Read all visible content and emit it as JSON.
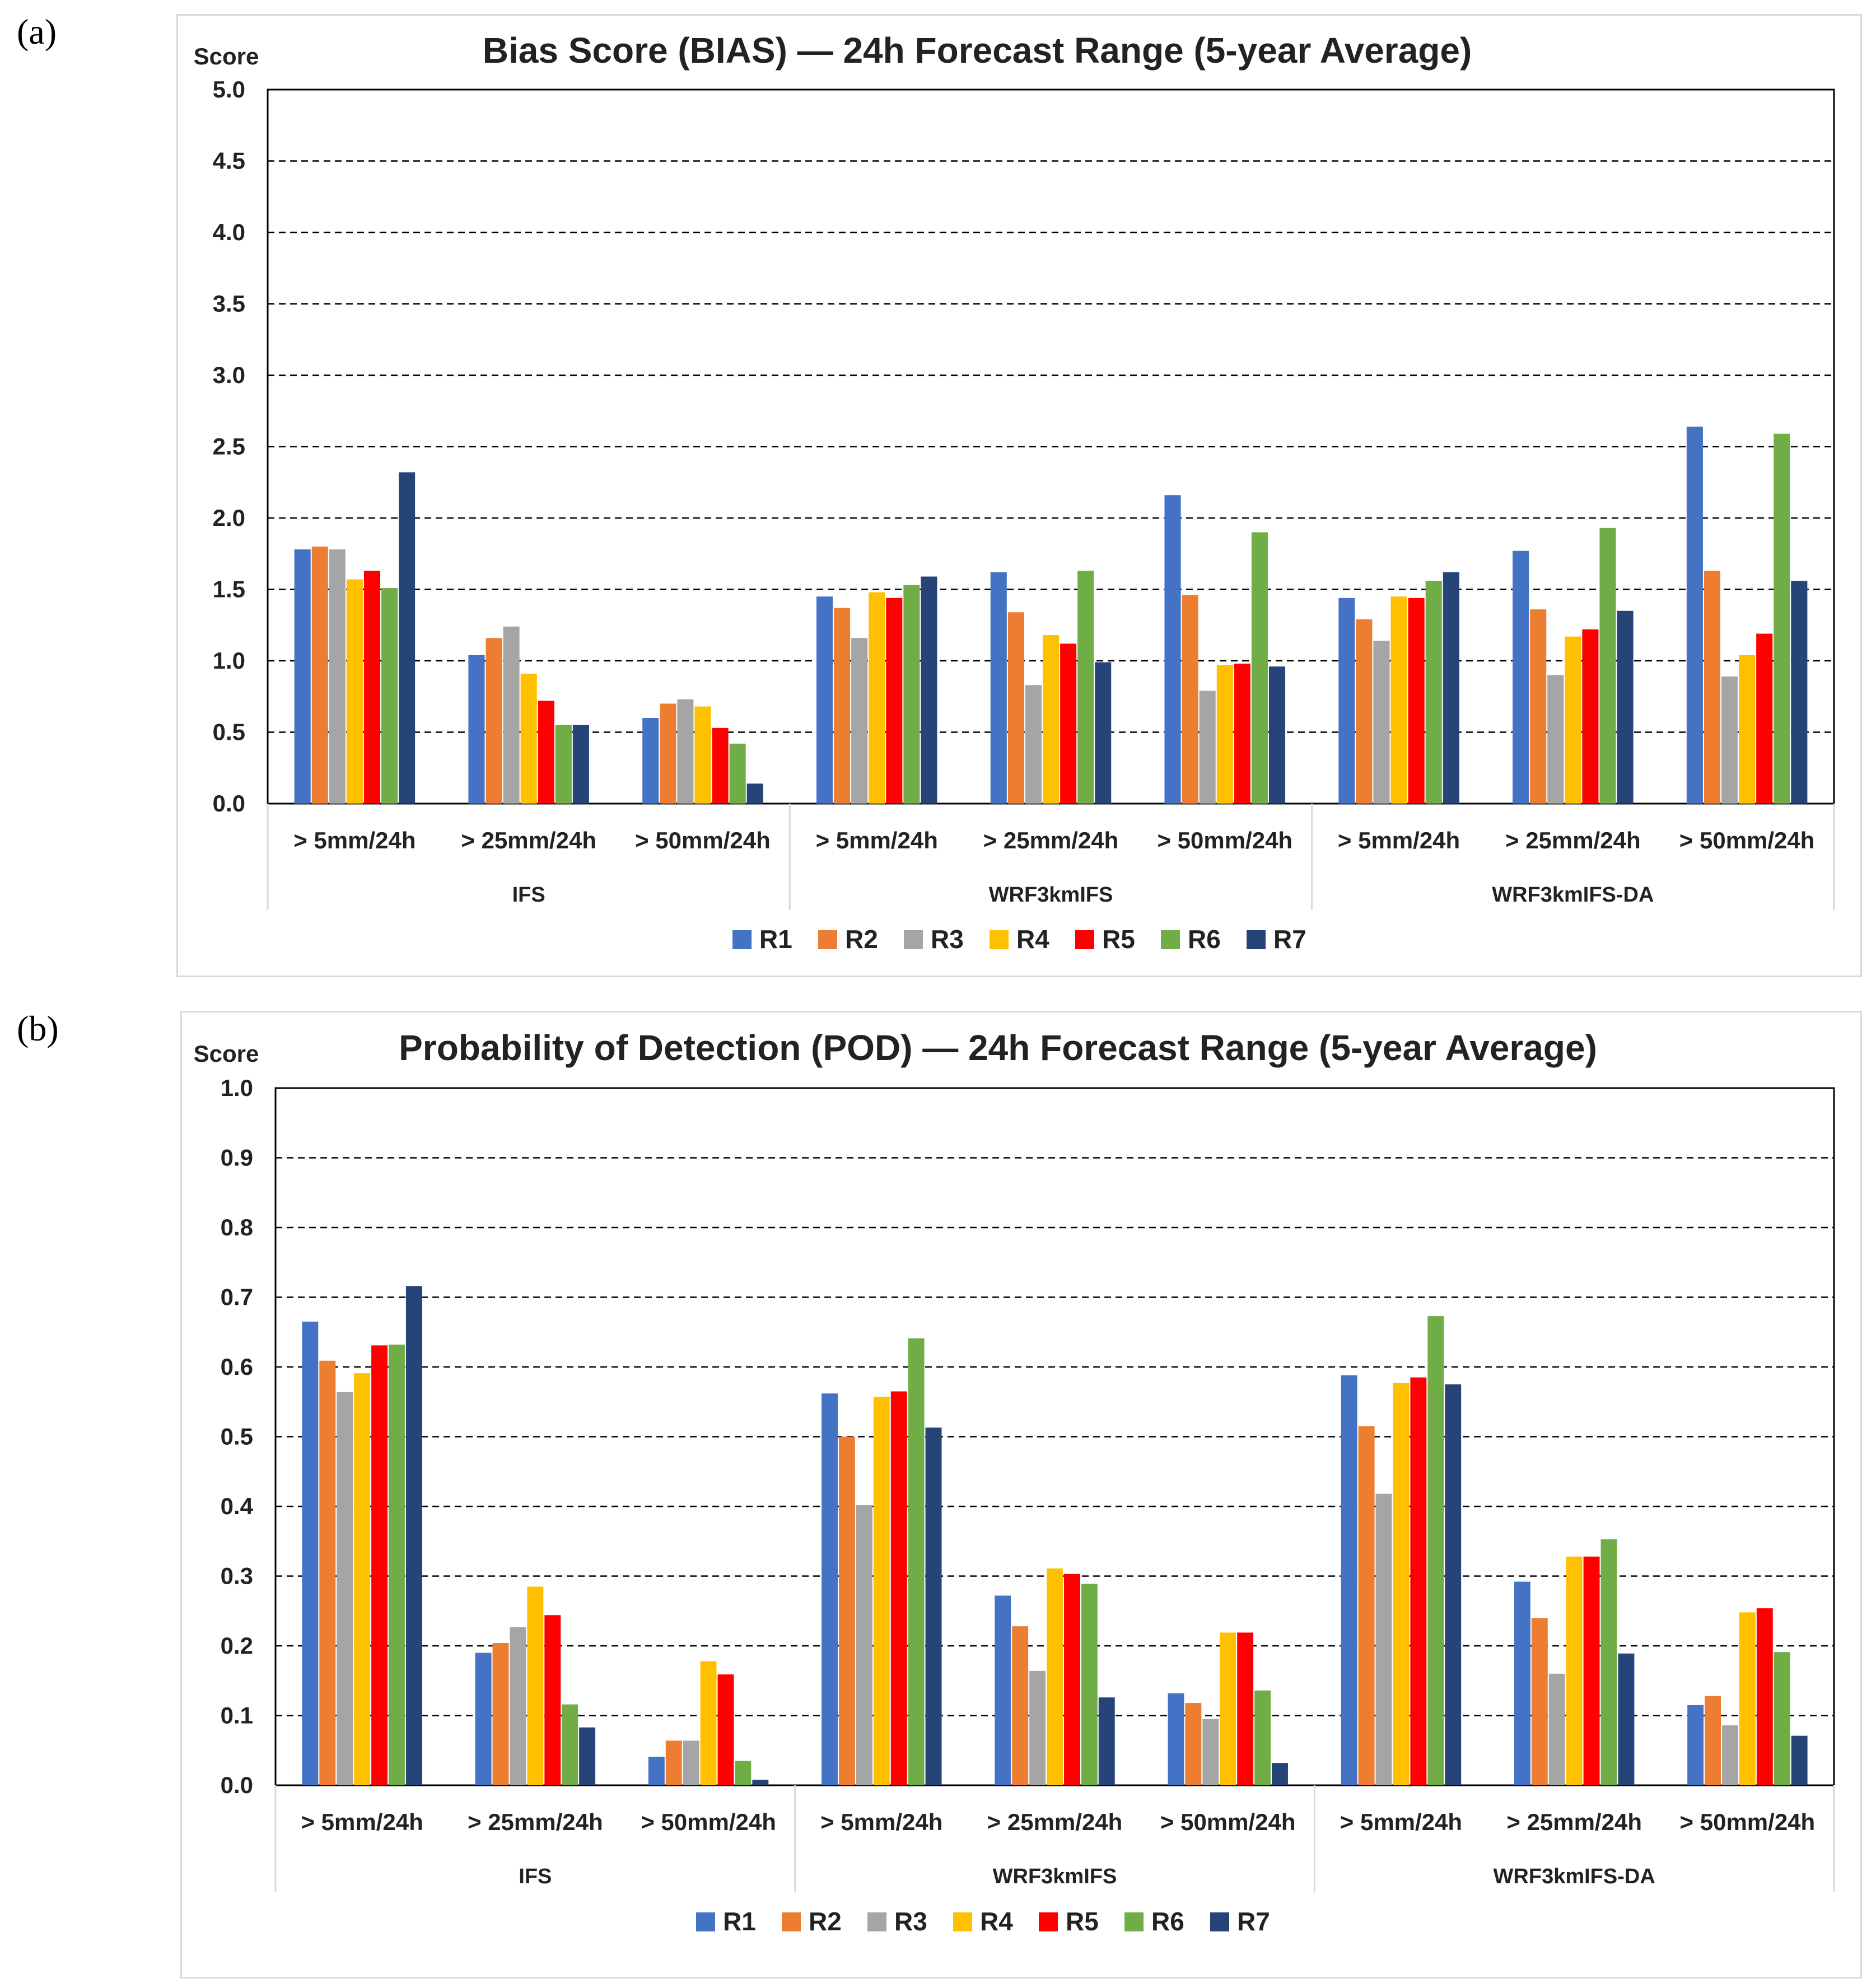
{
  "panels": [
    {
      "label": "(a)",
      "chart_data": {
        "type": "bar",
        "title": "Bias Score (BIAS) — 24h Forecast Range (5-year Average)",
        "ylabel": "Score",
        "xlabel": "",
        "ylim": [
          0,
          5.0
        ],
        "yticks": [
          0,
          0.5,
          1.0,
          1.5,
          2.0,
          2.5,
          3.0,
          3.5,
          4.0,
          4.5,
          5.0
        ],
        "tick_decimals": 1,
        "grid": true,
        "legend_position": "bottom",
        "groups": [
          {
            "name": "IFS",
            "categories": [
              "> 5mm/24h",
              "> 25mm/24h",
              "> 50mm/24h"
            ]
          },
          {
            "name": "WRF3kmIFS",
            "categories": [
              "> 5mm/24h",
              "> 25mm/24h",
              "> 50mm/24h"
            ]
          },
          {
            "name": "WRF3kmIFS-DA",
            "categories": [
              "> 5mm/24h",
              "> 25mm/24h",
              "> 50mm/24h"
            ]
          }
        ],
        "series": [
          {
            "name": "R1",
            "color": "#4472c4",
            "values": [
              1.78,
              1.04,
              0.6,
              1.45,
              1.62,
              2.16,
              1.44,
              1.77,
              2.64
            ]
          },
          {
            "name": "R2",
            "color": "#ed7d31",
            "values": [
              1.8,
              1.16,
              0.7,
              1.37,
              1.34,
              1.46,
              1.29,
              1.36,
              1.63
            ]
          },
          {
            "name": "R3",
            "color": "#a5a5a5",
            "values": [
              1.78,
              1.24,
              0.73,
              1.16,
              0.83,
              0.79,
              1.14,
              0.9,
              0.89
            ]
          },
          {
            "name": "R4",
            "color": "#ffc000",
            "values": [
              1.57,
              0.91,
              0.68,
              1.48,
              1.18,
              0.97,
              1.45,
              1.17,
              1.04
            ]
          },
          {
            "name": "R5",
            "color": "#ff0000",
            "values": [
              1.63,
              0.72,
              0.53,
              1.44,
              1.12,
              0.98,
              1.44,
              1.22,
              1.19
            ]
          },
          {
            "name": "R6",
            "color": "#70ad47",
            "values": [
              1.51,
              0.55,
              0.42,
              1.53,
              1.63,
              1.9,
              1.56,
              1.93,
              2.59
            ]
          },
          {
            "name": "R7",
            "color": "#264478",
            "values": [
              2.32,
              0.55,
              0.14,
              1.59,
              0.99,
              0.96,
              1.62,
              1.35,
              1.56
            ]
          }
        ]
      }
    },
    {
      "label": "(b)",
      "chart_data": {
        "type": "bar",
        "title": "Probability of Detection (POD) — 24h Forecast Range (5-year Average)",
        "ylabel": "Score",
        "xlabel": "",
        "ylim": [
          0,
          1.0
        ],
        "yticks": [
          0,
          0.1,
          0.2,
          0.3,
          0.4,
          0.5,
          0.6,
          0.7,
          0.8,
          0.9,
          1.0
        ],
        "tick_decimals": 1,
        "grid": true,
        "legend_position": "bottom",
        "groups": [
          {
            "name": "IFS",
            "categories": [
              "> 5mm/24h",
              "> 25mm/24h",
              "> 50mm/24h"
            ]
          },
          {
            "name": "WRF3kmIFS",
            "categories": [
              "> 5mm/24h",
              "> 25mm/24h",
              "> 50mm/24h"
            ]
          },
          {
            "name": "WRF3kmIFS-DA",
            "categories": [
              "> 5mm/24h",
              "> 25mm/24h",
              "> 50mm/24h"
            ]
          }
        ],
        "series": [
          {
            "name": "R1",
            "color": "#4472c4",
            "values": [
              0.665,
              0.19,
              0.041,
              0.562,
              0.272,
              0.132,
              0.588,
              0.292,
              0.115
            ]
          },
          {
            "name": "R2",
            "color": "#ed7d31",
            "values": [
              0.609,
              0.204,
              0.064,
              0.5,
              0.228,
              0.118,
              0.515,
              0.24,
              0.128
            ]
          },
          {
            "name": "R3",
            "color": "#a5a5a5",
            "values": [
              0.564,
              0.227,
              0.064,
              0.402,
              0.164,
              0.095,
              0.418,
              0.16,
              0.086
            ]
          },
          {
            "name": "R4",
            "color": "#ffc000",
            "values": [
              0.591,
              0.285,
              0.178,
              0.557,
              0.311,
              0.219,
              0.577,
              0.328,
              0.248
            ]
          },
          {
            "name": "R5",
            "color": "#ff0000",
            "values": [
              0.631,
              0.244,
              0.159,
              0.565,
              0.303,
              0.219,
              0.585,
              0.328,
              0.254
            ]
          },
          {
            "name": "R6",
            "color": "#70ad47",
            "values": [
              0.632,
              0.116,
              0.035,
              0.641,
              0.289,
              0.136,
              0.673,
              0.353,
              0.191
            ]
          },
          {
            "name": "R7",
            "color": "#264478",
            "values": [
              0.716,
              0.083,
              0.008,
              0.513,
              0.126,
              0.032,
              0.575,
              0.189,
              0.071
            ]
          }
        ]
      }
    }
  ]
}
